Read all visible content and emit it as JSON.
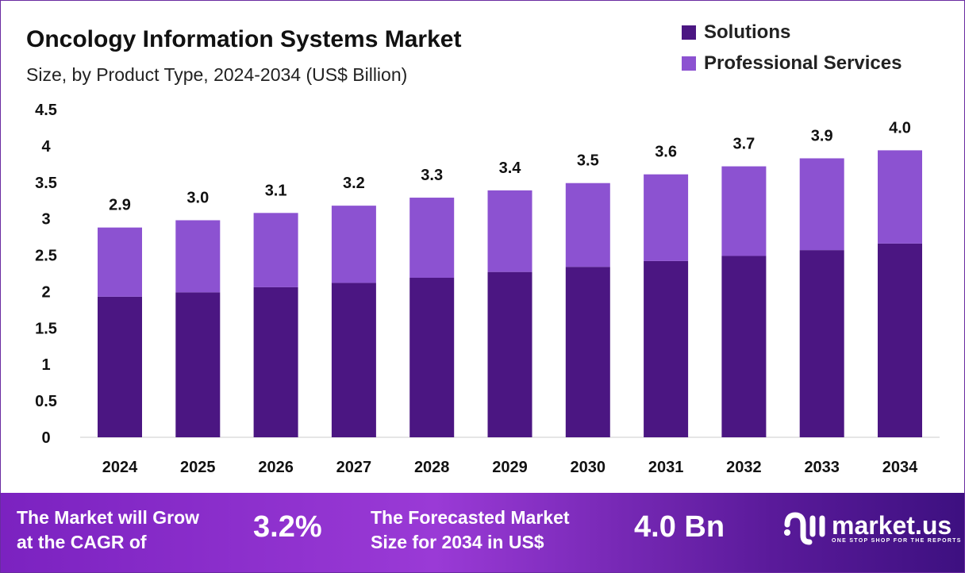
{
  "chart_data": {
    "type": "bar",
    "stacked": true,
    "title": "Oncology Information Systems Market",
    "subtitle": "Size, by Product Type, 2024-2034 (US$ Billion)",
    "categories": [
      "2024",
      "2025",
      "2026",
      "2027",
      "2028",
      "2029",
      "2030",
      "2031",
      "2032",
      "2033",
      "2034"
    ],
    "series": [
      {
        "name": "Solutions",
        "color": "#4b1682",
        "values": [
          1.93,
          1.99,
          2.06,
          2.12,
          2.19,
          2.27,
          2.34,
          2.42,
          2.49,
          2.57,
          2.66
        ]
      },
      {
        "name": "Professional Services",
        "color": "#8c52d1",
        "values": [
          0.95,
          0.99,
          1.02,
          1.06,
          1.1,
          1.12,
          1.15,
          1.19,
          1.23,
          1.26,
          1.28
        ]
      }
    ],
    "total_labels": [
      "2.9",
      "3.0",
      "3.1",
      "3.2",
      "3.3",
      "3.4",
      "3.5",
      "3.6",
      "3.7",
      "3.9",
      "4.0"
    ],
    "yticks": [
      "0",
      "0.5",
      "1",
      "1.5",
      "2",
      "2.5",
      "3",
      "3.5",
      "4",
      "4.5"
    ],
    "ylim": [
      0,
      4.5
    ],
    "grid": false,
    "legend_position": "top-right"
  },
  "footer": {
    "cagr_text_1": "The Market will Grow",
    "cagr_text_2": "at the CAGR of",
    "cagr_value": "3.2%",
    "forecast_text_1": "The Forecasted Market",
    "forecast_text_2": "Size for 2034 in US$",
    "forecast_value": "4.0 Bn",
    "logo_name": "market.us",
    "logo_tagline": "ONE STOP SHOP FOR THE REPORTS"
  }
}
